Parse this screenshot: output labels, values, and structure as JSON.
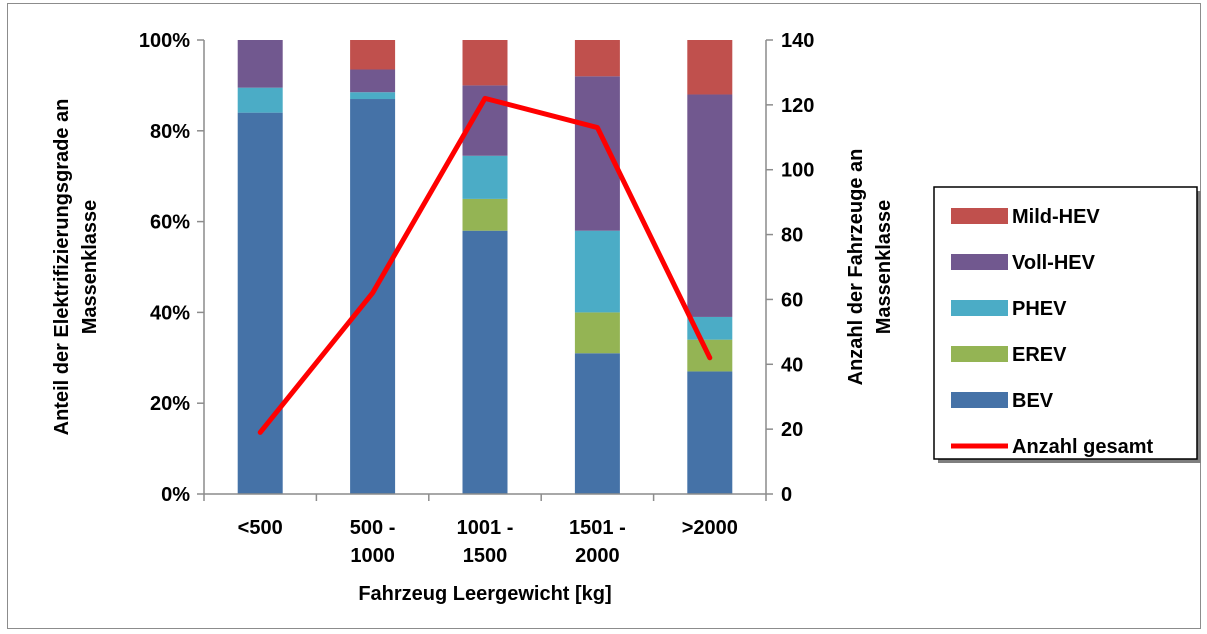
{
  "chart_data": {
    "type": "bar",
    "stacked": true,
    "title": "",
    "xlabel": "Fahrzeug Leergewicht [kg]",
    "ylabel": "Anteil der Elektrifizierungsgrade an Massenklasse",
    "y2label": "Anzahl der Fahrzeuge an Massenklasse",
    "categories": [
      [
        "<500"
      ],
      [
        "500 -",
        "1000"
      ],
      [
        "1001 -",
        "1500"
      ],
      [
        "1501 -",
        "2000"
      ],
      [
        ">2000"
      ]
    ],
    "ylim": [
      0,
      100
    ],
    "yticks": [
      "0%",
      "20%",
      "40%",
      "60%",
      "80%",
      "100%"
    ],
    "y2lim": [
      0,
      140
    ],
    "y2ticks": [
      "0",
      "20",
      "40",
      "60",
      "80",
      "100",
      "120",
      "140"
    ],
    "series": [
      {
        "name": "BEV",
        "color": "#4572a7",
        "values": [
          84,
          87,
          58,
          31,
          27
        ]
      },
      {
        "name": "EREV",
        "color": "#94b454",
        "values": [
          0,
          0,
          7,
          9,
          7
        ]
      },
      {
        "name": "PHEV",
        "color": "#4bacc6",
        "values": [
          5.5,
          1.5,
          9.5,
          18,
          5
        ]
      },
      {
        "name": "Voll-HEV",
        "color": "#71588f",
        "values": [
          10.5,
          5,
          15.5,
          34,
          49
        ]
      },
      {
        "name": "Mild-HEV",
        "color": "#c0504d",
        "values": [
          0,
          6.5,
          10,
          8,
          12
        ]
      }
    ],
    "line": {
      "name": "Anzahl gesamt",
      "color": "#ff0000",
      "axis": "y2",
      "values": [
        19,
        62,
        122,
        113,
        42
      ]
    },
    "legend": {
      "position": "right",
      "entries": [
        "Mild-HEV",
        "Voll-HEV",
        "PHEV",
        "EREV",
        "BEV",
        "Anzahl gesamt"
      ]
    },
    "grid": false
  }
}
